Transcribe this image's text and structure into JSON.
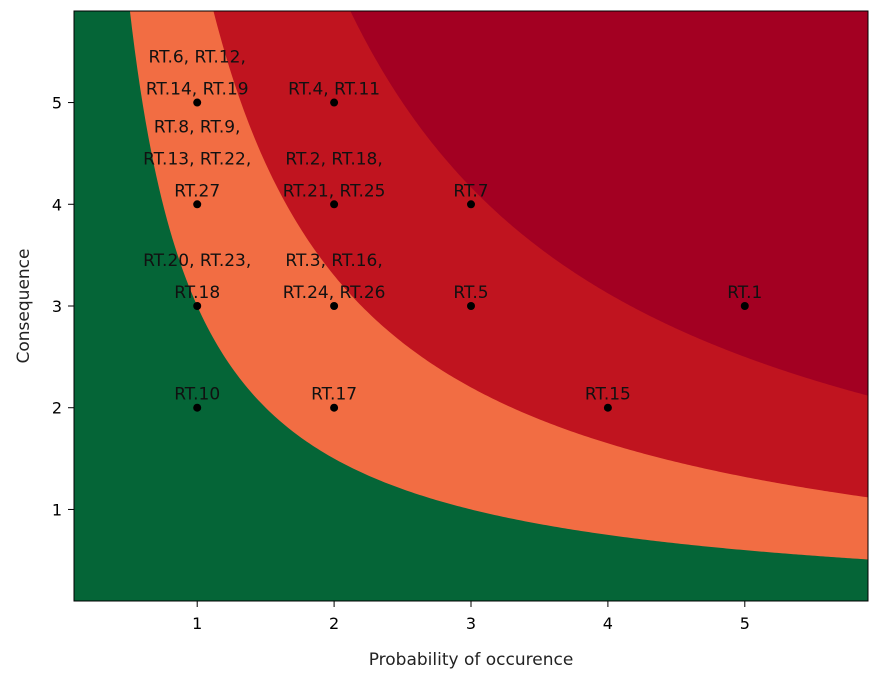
{
  "chart_data": {
    "type": "scatter",
    "title": "",
    "xlabel": "Probability of occurence",
    "ylabel": "Consequence",
    "xlim": [
      0.1,
      5.9
    ],
    "ylim": [
      0.1,
      5.9
    ],
    "xticks": [
      "1",
      "2",
      "3",
      "4",
      "5"
    ],
    "yticks": [
      "1",
      "2",
      "3",
      "4",
      "5"
    ],
    "grid": false,
    "background_zones": [
      {
        "name": "low",
        "color": "#056537",
        "risk_max": 3
      },
      {
        "name": "medium",
        "color": "#f26d43",
        "risk_max": 6.6
      },
      {
        "name": "high",
        "color": "#c0141f",
        "risk_max": 12.5
      },
      {
        "name": "very-high",
        "color": "#a30022",
        "risk_max": null
      }
    ],
    "points": [
      {
        "x": 1,
        "y": 5,
        "lines": [
          "RT.6, RT.12,",
          "RT.14, RT.19"
        ]
      },
      {
        "x": 2,
        "y": 5,
        "lines": [
          "RT.4, RT.11"
        ]
      },
      {
        "x": 1,
        "y": 4,
        "lines": [
          "RT.8, RT.9,",
          "RT.13, RT.22,",
          "RT.27"
        ]
      },
      {
        "x": 2,
        "y": 4,
        "lines": [
          "RT.2, RT.18,",
          "RT.21, RT.25"
        ]
      },
      {
        "x": 3,
        "y": 4,
        "lines": [
          "RT.7"
        ]
      },
      {
        "x": 1,
        "y": 3,
        "lines": [
          "RT.20, RT.23,",
          "RT.18"
        ]
      },
      {
        "x": 2,
        "y": 3,
        "lines": [
          "RT.3, RT.16,",
          "RT.24, RT.26"
        ]
      },
      {
        "x": 3,
        "y": 3,
        "lines": [
          "RT.5"
        ]
      },
      {
        "x": 5,
        "y": 3,
        "lines": [
          "RT.1"
        ]
      },
      {
        "x": 1,
        "y": 2,
        "lines": [
          "RT.10"
        ]
      },
      {
        "x": 2,
        "y": 2,
        "lines": [
          "RT.17"
        ]
      },
      {
        "x": 4,
        "y": 2,
        "lines": [
          "RT.15"
        ]
      }
    ]
  }
}
